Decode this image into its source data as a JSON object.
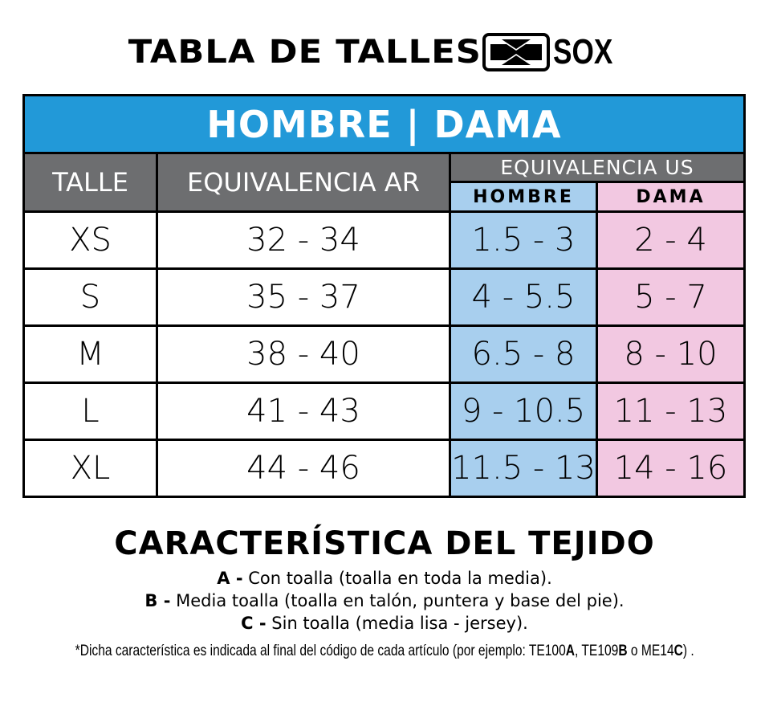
{
  "header": {
    "title": "TABLA DE TALLES",
    "logo_text": "SOX"
  },
  "table": {
    "banner": "HOMBRE | DAMA",
    "columns": {
      "talle": "TALLE",
      "equiv_ar": "EQUIVALENCIA AR",
      "equiv_us": "EQUIVALENCIA US",
      "hombre": "HOMBRE",
      "dama": "DAMA"
    },
    "rows": [
      {
        "talle": "XS",
        "ar": "32 - 34",
        "hombre": "1.5 - 3",
        "dama": "2 - 4"
      },
      {
        "talle": "S",
        "ar": "35 - 37",
        "hombre": "4 - 5.5",
        "dama": "5 - 7"
      },
      {
        "talle": "M",
        "ar": "38 - 40",
        "hombre": "6.5 - 8",
        "dama": "8 - 10"
      },
      {
        "talle": "L",
        "ar": "41 - 43",
        "hombre": "9 - 10.5",
        "dama": "11 - 13"
      },
      {
        "talle": "XL",
        "ar": "44 - 46",
        "hombre": "11.5 - 13",
        "dama": "14 - 16"
      }
    ],
    "colors": {
      "banner": "#2299d8",
      "header": "#6d6e70",
      "hombre": "#a8cfee",
      "dama": "#f2c8e1"
    }
  },
  "fabric": {
    "title": "CARACTERÍSTICA DEL TEJIDO",
    "items": [
      {
        "code": "A -",
        "text": " Con toalla (toalla en toda la media)."
      },
      {
        "code": "B -",
        "text": " Media toalla (toalla en talón, puntera y base del pie)."
      },
      {
        "code": "C -",
        "text": " Sin toalla (media lisa - jersey)."
      }
    ],
    "note": {
      "p1": "*Dicha característica es indicada al final del código de cada artículo (por ejemplo: TE100",
      "b1": "A",
      "p2": ", TE109",
      "b2": "B",
      "p3": " o ME14",
      "b3": "C",
      "p4": ") ."
    }
  }
}
